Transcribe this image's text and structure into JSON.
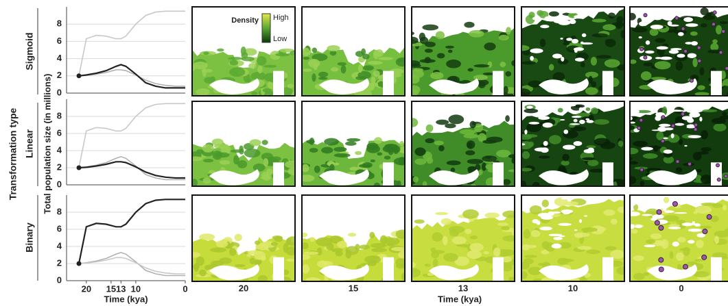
{
  "figure": {
    "row_axis_label": "Transformation type",
    "map_xlabel": "Time (kya)",
    "map_columns": [
      "20",
      "15",
      "13",
      "10",
      "0"
    ],
    "legend": {
      "title": "Density",
      "high": "High",
      "low": "Low"
    }
  },
  "chart_data": [
    {
      "type": "line",
      "row_label": "Sigmoid",
      "x": [
        21.5,
        20,
        18,
        16,
        14,
        13,
        12,
        10,
        8,
        6,
        4,
        2,
        0
      ],
      "xlim": [
        24,
        0
      ],
      "ylim": [
        0,
        10
      ],
      "yticks": [
        0,
        2,
        4,
        6,
        8
      ],
      "grid": true,
      "series": [
        {
          "name": "Binary",
          "color": "#c8c8c8",
          "values": [
            2,
            6.3,
            6.7,
            6.6,
            6.3,
            6.3,
            6.6,
            8,
            9,
            9.4,
            9.5,
            9.5,
            9.5
          ]
        },
        {
          "name": "Linear",
          "color": "#b0b0b0",
          "values": [
            2,
            2.05,
            2.2,
            2.4,
            2.7,
            2.7,
            2.6,
            2.1,
            1.5,
            1.1,
            0.9,
            0.8,
            0.8
          ]
        },
        {
          "name": "Sigmoid",
          "color": "#222222",
          "values": [
            2,
            2.1,
            2.3,
            2.6,
            3.1,
            3.3,
            3.1,
            2.2,
            1.2,
            0.8,
            0.6,
            0.6,
            0.6
          ]
        }
      ]
    },
    {
      "type": "line",
      "row_label": "Linear",
      "ylabel": "Total population size (in millions)",
      "x": [
        21.5,
        20,
        18,
        16,
        14,
        13,
        12,
        10,
        8,
        6,
        4,
        2,
        0
      ],
      "xlim": [
        24,
        0
      ],
      "ylim": [
        0,
        10
      ],
      "yticks": [
        0,
        2,
        4,
        6,
        8
      ],
      "grid": true,
      "series": [
        {
          "name": "Binary",
          "color": "#c8c8c8",
          "values": [
            2,
            6.3,
            6.7,
            6.6,
            6.3,
            6.3,
            6.6,
            8,
            9,
            9.4,
            9.5,
            9.5,
            9.5
          ]
        },
        {
          "name": "Sigmoid",
          "color": "#b0b0b0",
          "values": [
            2,
            2.1,
            2.3,
            2.6,
            3.1,
            3.3,
            3.1,
            2.2,
            1.2,
            0.8,
            0.6,
            0.6,
            0.6
          ]
        },
        {
          "name": "Linear",
          "color": "#222222",
          "values": [
            2,
            2.05,
            2.2,
            2.4,
            2.7,
            2.7,
            2.6,
            2.1,
            1.5,
            1.1,
            0.9,
            0.8,
            0.8
          ]
        }
      ]
    },
    {
      "type": "line",
      "row_label": "Binary",
      "xlabel": "Time  (kya)",
      "x": [
        21.5,
        20,
        18,
        16,
        14,
        13,
        12,
        10,
        8,
        6,
        4,
        2,
        0
      ],
      "xlim": [
        24,
        0
      ],
      "ylim": [
        0,
        10
      ],
      "yticks": [
        0,
        2,
        4,
        6,
        8
      ],
      "xticks": [
        20,
        15,
        13,
        10,
        0
      ],
      "grid": true,
      "series": [
        {
          "name": "Sigmoid",
          "color": "#b0b0b0",
          "values": [
            2,
            2.1,
            2.3,
            2.6,
            3.1,
            3.3,
            3.1,
            2.2,
            1.2,
            0.8,
            0.6,
            0.6,
            0.6
          ]
        },
        {
          "name": "Linear",
          "color": "#c8c8c8",
          "values": [
            2,
            2.05,
            2.2,
            2.4,
            2.7,
            2.7,
            2.6,
            2.1,
            1.5,
            1.1,
            0.9,
            0.8,
            0.8
          ]
        },
        {
          "name": "Binary",
          "color": "#222222",
          "values": [
            2,
            6.3,
            6.7,
            6.6,
            6.3,
            6.3,
            6.6,
            8,
            9,
            9.4,
            9.5,
            9.5,
            9.5
          ]
        }
      ]
    }
  ]
}
